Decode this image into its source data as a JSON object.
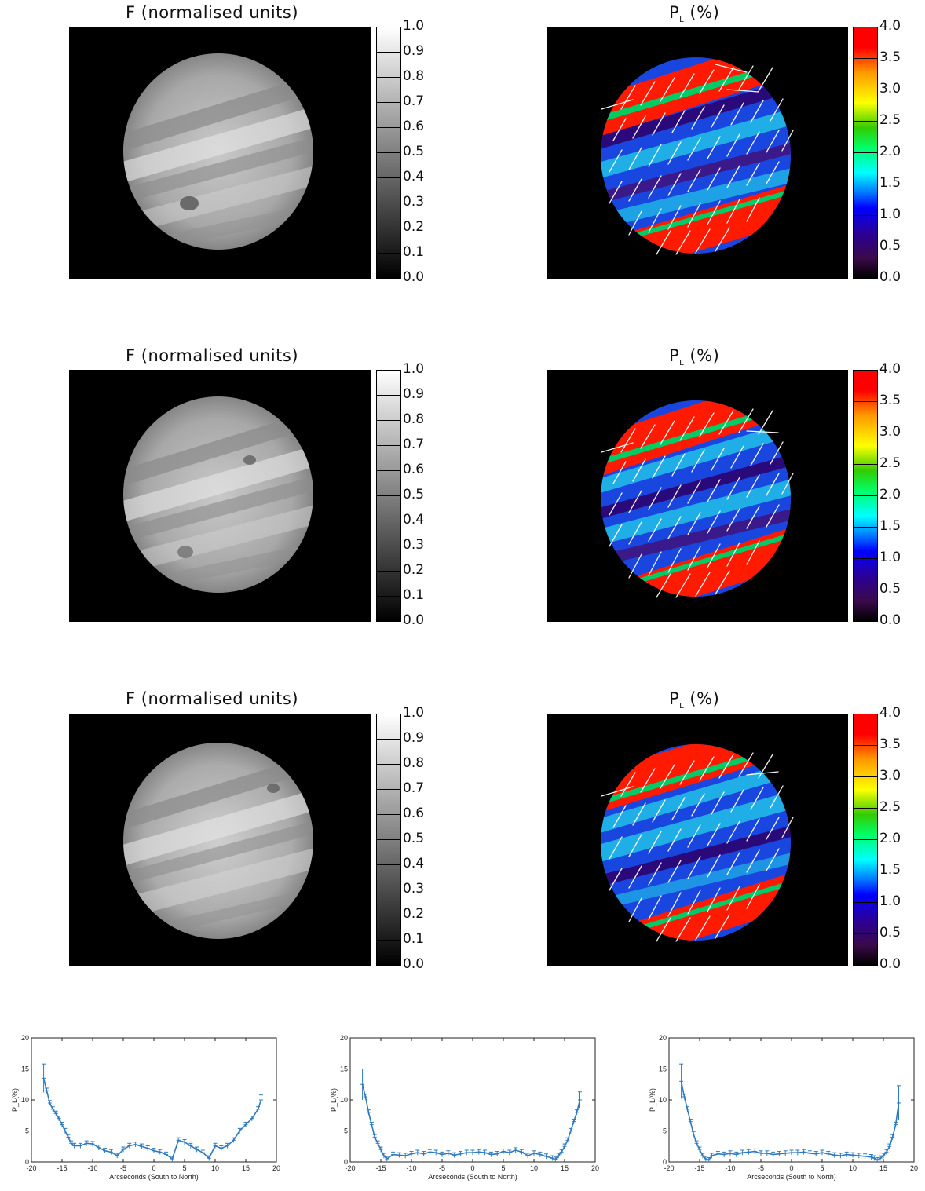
{
  "panels": [
    {
      "flux_title": "F (normalised units)",
      "pol_title_main": "P",
      "pol_title_sub": "L",
      "pol_title_tail": " (%)"
    },
    {
      "flux_title": "F (normalised units)",
      "pol_title_main": "P",
      "pol_title_sub": "L",
      "pol_title_tail": " (%)"
    },
    {
      "flux_title": "F (normalised units)",
      "pol_title_main": "P",
      "pol_title_sub": "L",
      "pol_title_tail": " (%)"
    }
  ],
  "colorbars": {
    "flux_ticks": [
      "1.0",
      "0.9",
      "0.8",
      "0.7",
      "0.6",
      "0.5",
      "0.4",
      "0.3",
      "0.2",
      "0.1",
      "0.0"
    ],
    "pol_ticks": [
      "4.0",
      "3.5",
      "3.0",
      "2.5",
      "2.0",
      "1.5",
      "1.0",
      "0.5",
      "0.0"
    ],
    "flux_range": [
      0,
      1
    ],
    "pol_range": [
      0,
      4
    ]
  },
  "colors": {
    "series": "#2f7bbf",
    "pol_scale": [
      "#000000",
      "#3a0a4a",
      "#2a0099",
      "#0000ff",
      "#0077ff",
      "#00ffff",
      "#00ff66",
      "#33cc00",
      "#ffff00",
      "#ff9900",
      "#ff0000"
    ]
  },
  "chart_data": [
    {
      "type": "line",
      "xlabel": "Arcseconds (South to North)",
      "ylabel": "P_L(%)",
      "xlim": [
        -20,
        20
      ],
      "ylim": [
        0,
        20
      ],
      "xticks": [
        "-20",
        "-15",
        "-10",
        "-5",
        "0",
        "5",
        "10",
        "15",
        "20"
      ],
      "yticks": [
        "0",
        "5",
        "10",
        "15",
        "20"
      ],
      "series": [
        {
          "x": [
            -18,
            -17.5,
            -17,
            -16.5,
            -16,
            -15.5,
            -15,
            -14.5,
            -14,
            -13.5,
            -13,
            -12,
            -11,
            -10,
            -9,
            -8,
            -7,
            -6,
            -5,
            -4,
            -3,
            -2,
            -1,
            0,
            1,
            2,
            3,
            4,
            5,
            6,
            7,
            8,
            9,
            10,
            11,
            12,
            13,
            14,
            15,
            16,
            17,
            17.5
          ],
          "y": [
            13.5,
            11.5,
            9.5,
            8.5,
            7.8,
            7,
            6,
            5,
            4,
            3,
            2.6,
            2.6,
            3,
            2.9,
            2.3,
            1.8,
            1.6,
            1,
            2,
            2.6,
            2.8,
            2.5,
            2.2,
            1.8,
            1.6,
            1.2,
            0.5,
            3.5,
            3.2,
            2.6,
            2,
            1.5,
            0.6,
            2.6,
            2.2,
            2.6,
            3.5,
            5,
            6,
            7,
            8.5,
            10
          ],
          "err_max": [
            15.8,
            null,
            null,
            null,
            null,
            null,
            null,
            null,
            null,
            null,
            null,
            null,
            null,
            null,
            null,
            null,
            null,
            null,
            null,
            null,
            null,
            null,
            null,
            null,
            null,
            null,
            null,
            null,
            null,
            null,
            null,
            null,
            null,
            null,
            null,
            null,
            null,
            null,
            null,
            null,
            null,
            10.8
          ]
        }
      ]
    },
    {
      "type": "line",
      "xlabel": "Arcseconds (South to North)",
      "ylabel": "P_L(%)",
      "xlim": [
        -20,
        20
      ],
      "ylim": [
        0,
        20
      ],
      "xticks": [
        "-20",
        "-15",
        "-10",
        "-5",
        "0",
        "5",
        "10",
        "15",
        "20"
      ],
      "yticks": [
        "0",
        "5",
        "10",
        "15",
        "20"
      ],
      "series": [
        {
          "x": [
            -18,
            -17.5,
            -17,
            -16.5,
            -16,
            -15.5,
            -15,
            -14.5,
            -14,
            -13,
            -12,
            -11,
            -10,
            -9,
            -8,
            -7,
            -6,
            -5,
            -4,
            -3,
            -2,
            -1,
            0,
            1,
            2,
            3,
            4,
            5,
            6,
            7,
            8,
            9,
            10,
            11,
            12,
            13,
            13.5,
            14,
            14.5,
            15,
            15.5,
            16,
            16.5,
            17,
            17.5
          ],
          "y": [
            12.5,
            10.5,
            8,
            6,
            4,
            3,
            2,
            1,
            0.5,
            1.2,
            1.1,
            1,
            1.3,
            1.5,
            1.3,
            1.6,
            1.5,
            1.2,
            1.4,
            1.1,
            1.3,
            1.5,
            1.5,
            1.6,
            1.5,
            1.2,
            1.3,
            1.7,
            1.5,
            1.9,
            1.6,
            1,
            1.4,
            1.2,
            0.9,
            0.6,
            0.4,
            1,
            1.6,
            2.5,
            3.5,
            5,
            6.5,
            8,
            10
          ],
          "err_max": [
            15,
            null,
            null,
            null,
            null,
            null,
            null,
            null,
            null,
            null,
            null,
            null,
            null,
            null,
            null,
            null,
            null,
            null,
            null,
            null,
            null,
            null,
            null,
            null,
            null,
            null,
            null,
            null,
            null,
            null,
            null,
            null,
            null,
            null,
            null,
            null,
            null,
            null,
            null,
            null,
            null,
            null,
            null,
            null,
            11.3
          ]
        }
      ]
    },
    {
      "type": "line",
      "xlabel": "Arcseconds (South to North)",
      "ylabel": "P_L(%)",
      "xlim": [
        -20,
        20
      ],
      "ylim": [
        0,
        20
      ],
      "xticks": [
        "-20",
        "-15",
        "-10",
        "-5",
        "0",
        "5",
        "10",
        "15",
        "20"
      ],
      "yticks": [
        "0",
        "5",
        "10",
        "15",
        "20"
      ],
      "series": [
        {
          "x": [
            -18,
            -17.5,
            -17,
            -16.5,
            -16,
            -15.5,
            -15,
            -14.5,
            -14,
            -13.5,
            -13,
            -12,
            -11,
            -10,
            -9,
            -8,
            -7,
            -6,
            -5,
            -4,
            -3,
            -2,
            -1,
            0,
            1,
            2,
            3,
            4,
            5,
            6,
            7,
            8,
            9,
            10,
            11,
            12,
            13,
            13.5,
            14,
            14.5,
            15,
            15.5,
            16,
            16.5,
            17,
            17.5
          ],
          "y": [
            13,
            10.5,
            8.5,
            6.5,
            4.5,
            3,
            2,
            1,
            0.5,
            0.3,
            1,
            1.3,
            1.2,
            1.4,
            1.2,
            1.5,
            1.6,
            1.7,
            1.4,
            1.4,
            1.2,
            1.3,
            1.4,
            1.5,
            1.5,
            1.6,
            1.4,
            1.3,
            1.5,
            1.3,
            1.1,
            1,
            1.2,
            1.1,
            1,
            0.9,
            0.8,
            0.6,
            0.3,
            0.6,
            1,
            1.6,
            2.5,
            4,
            6,
            9.5
          ],
          "err_max": [
            15.8,
            null,
            null,
            null,
            null,
            null,
            null,
            null,
            null,
            null,
            null,
            null,
            null,
            null,
            null,
            null,
            null,
            null,
            null,
            null,
            null,
            null,
            null,
            null,
            null,
            null,
            null,
            null,
            null,
            null,
            null,
            null,
            null,
            null,
            null,
            null,
            null,
            null,
            null,
            null,
            null,
            null,
            null,
            null,
            null,
            12.3
          ]
        }
      ]
    }
  ]
}
